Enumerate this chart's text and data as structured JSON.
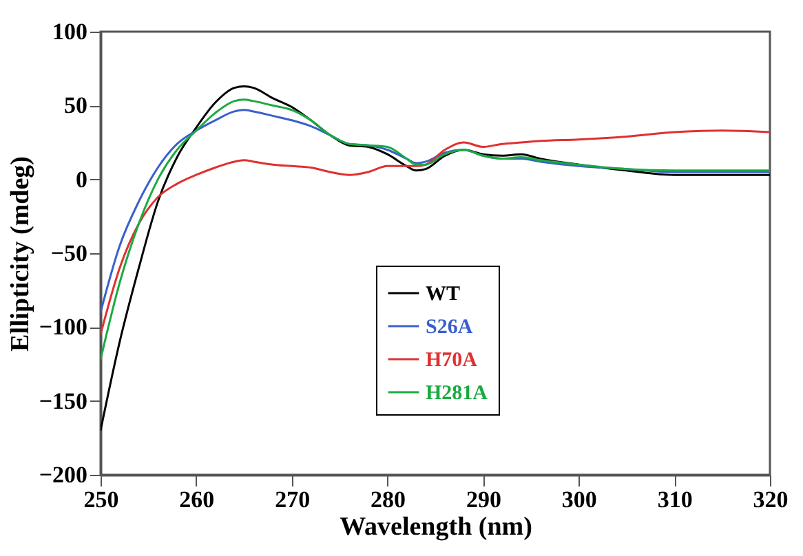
{
  "chart_data": {
    "type": "line",
    "xlabel": "Wavelength (nm)",
    "ylabel": "Ellipticity (mdeg)",
    "x": [
      250,
      252,
      254,
      256,
      258,
      260,
      262,
      264,
      265,
      266,
      268,
      270,
      272,
      274,
      276,
      278,
      280,
      282,
      283,
      284,
      286,
      288,
      290,
      292,
      294,
      296,
      300,
      305,
      310,
      315,
      320
    ],
    "xlim": [
      250,
      320
    ],
    "xticks": [
      250,
      260,
      270,
      280,
      290,
      300,
      310,
      320
    ],
    "ylim": [
      -200,
      100
    ],
    "yticks": [
      -200,
      -150,
      -100,
      -50,
      0,
      50,
      100
    ],
    "grid": false,
    "legend": "center",
    "line_style": "solid",
    "marker": "none",
    "series": [
      {
        "name": "WT",
        "color": "#000000",
        "values": [
          -170,
          -110,
          -60,
          -15,
          15,
          35,
          52,
          62,
          63,
          62,
          55,
          49,
          40,
          30,
          23,
          22,
          17,
          9,
          6,
          7,
          16,
          20,
          17,
          16,
          17,
          14,
          10,
          6,
          3,
          3,
          3
        ]
      },
      {
        "name": "S26A",
        "color": "#3a5fcd",
        "values": [
          -90,
          -45,
          -15,
          8,
          24,
          33,
          40,
          46,
          47,
          46,
          43,
          40,
          36,
          30,
          24,
          23,
          20,
          14,
          11,
          12,
          18,
          20,
          16,
          14,
          14,
          12,
          9,
          7,
          5,
          5,
          5
        ]
      },
      {
        "name": "H70A",
        "color": "#e03030",
        "values": [
          -105,
          -60,
          -30,
          -12,
          -3,
          3,
          8,
          12,
          13,
          12,
          10,
          9,
          8,
          5,
          3,
          5,
          9,
          9,
          9,
          10,
          20,
          25,
          22,
          24,
          25,
          26,
          27,
          29,
          32,
          33,
          32
        ]
      },
      {
        "name": "H281A",
        "color": "#1aaa40",
        "values": [
          -122,
          -70,
          -30,
          0,
          20,
          33,
          45,
          53,
          54,
          53,
          50,
          47,
          40,
          30,
          24,
          23,
          22,
          14,
          10,
          10,
          17,
          20,
          16,
          14,
          15,
          13,
          10,
          7,
          6,
          6,
          6
        ]
      }
    ]
  }
}
